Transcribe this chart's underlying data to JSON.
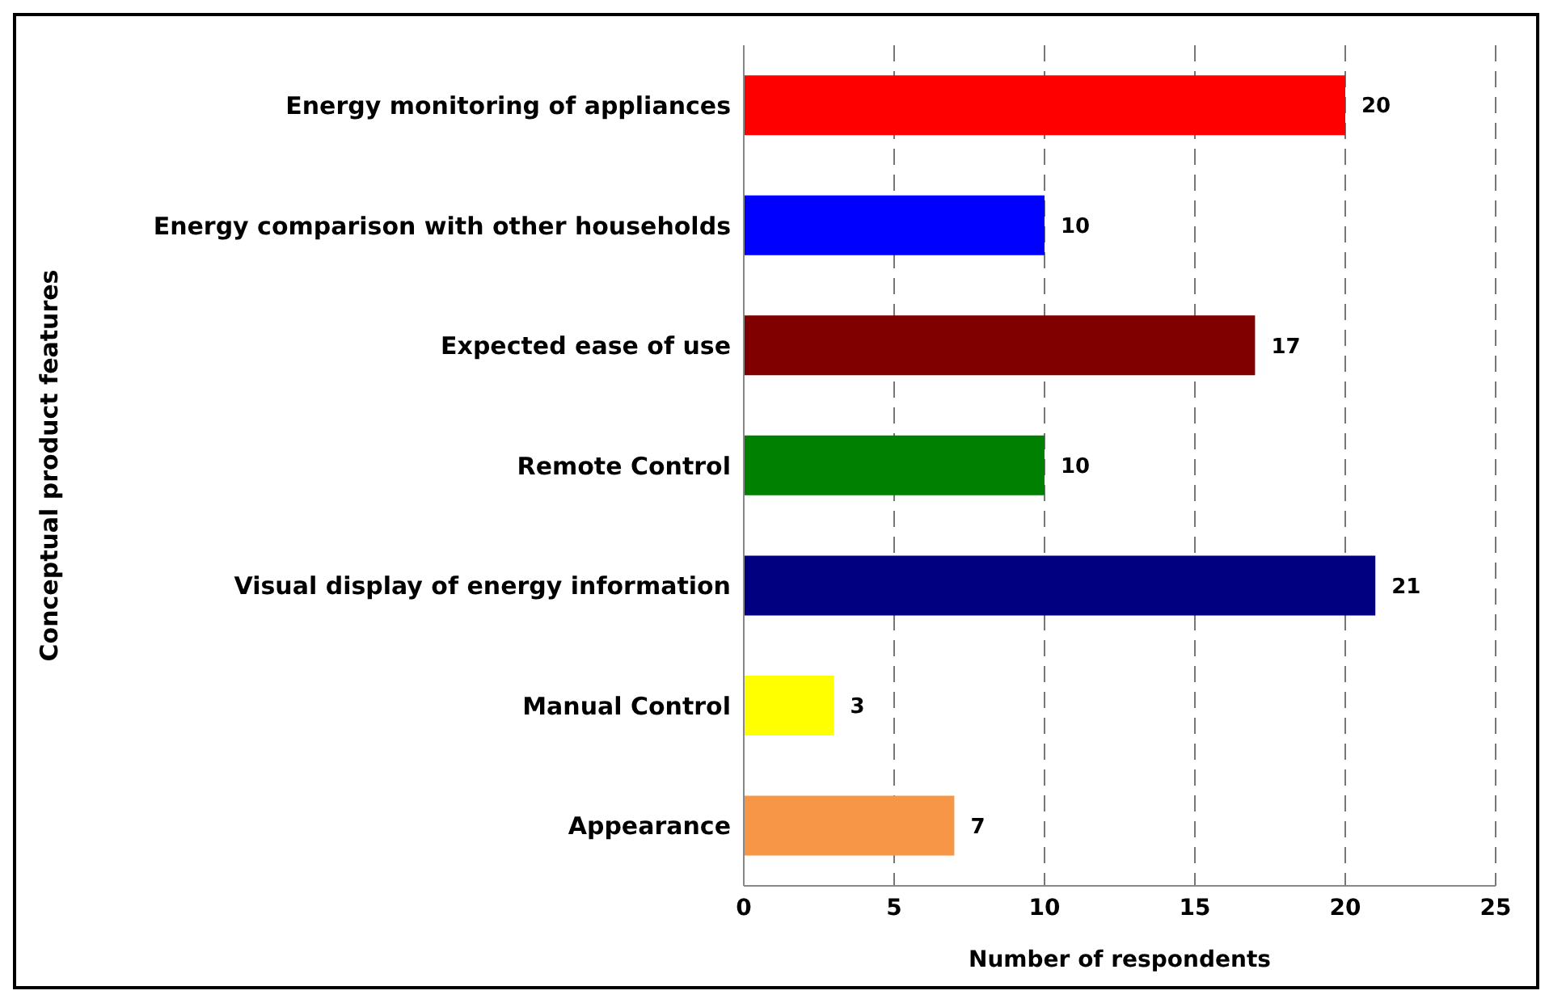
{
  "chart_data": {
    "type": "bar",
    "orientation": "horizontal",
    "xlabel": "Number of respondents",
    "ylabel": "Conceptual product features",
    "categories": [
      "Energy monitoring of appliances",
      "Energy comparison with other households",
      "Expected ease of use",
      "Remote Control",
      "Visual display of energy information",
      "Manual Control",
      "Appearance"
    ],
    "values": [
      20,
      10,
      17,
      10,
      21,
      3,
      7
    ],
    "colors": [
      "#ff0000",
      "#0000ff",
      "#800000",
      "#008000",
      "#000080",
      "#ffff00",
      "#f79646"
    ],
    "xlim": [
      0,
      25
    ],
    "xticks": [
      0,
      5,
      10,
      15,
      20,
      25
    ],
    "grid": "x",
    "data_labels": true
  }
}
